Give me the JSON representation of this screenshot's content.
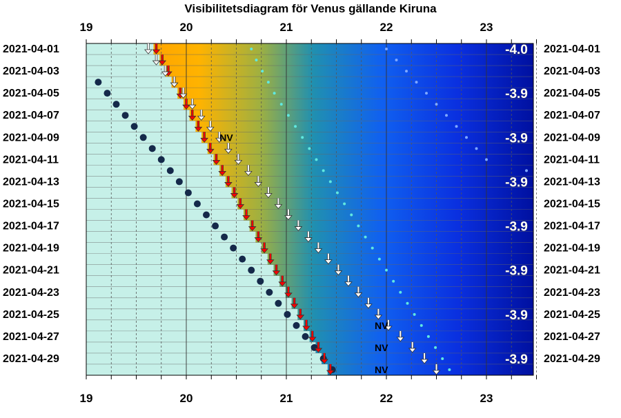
{
  "chart_data": {
    "type": "scatter",
    "title": "Visibilitetsdiagram för Venus gällande Kiruna",
    "x_ticks": [
      "19",
      "20",
      "21",
      "22",
      "23"
    ],
    "xlim": [
      19,
      23.5
    ],
    "date_labels": [
      "2021-04-01",
      "2021-04-03",
      "2021-04-05",
      "2021-04-07",
      "2021-04-09",
      "2021-04-11",
      "2021-04-13",
      "2021-04-15",
      "2021-04-17",
      "2021-04-19",
      "2021-04-21",
      "2021-04-23",
      "2021-04-25",
      "2021-04-27",
      "2021-04-29"
    ],
    "grid": true,
    "colors": {
      "light_sky": "#c6f0e8",
      "twilight": "#ffa500",
      "night": "#1020d0",
      "dot": "#15294a",
      "set_arrow": "#ff0000"
    },
    "series": [
      {
        "kind": "dark_dots",
        "dates": [
          "2021-04-04",
          "2021-04-05",
          "2021-04-06",
          "2021-04-07",
          "2021-04-08",
          "2021-04-09",
          "2021-04-10",
          "2021-04-11",
          "2021-04-12",
          "2021-04-13",
          "2021-04-14",
          "2021-04-15",
          "2021-04-16",
          "2021-04-17",
          "2021-04-18",
          "2021-04-19",
          "2021-04-20",
          "2021-04-21",
          "2021-04-22",
          "2021-04-23",
          "2021-04-24",
          "2021-04-25",
          "2021-04-26",
          "2021-04-27",
          "2021-04-28",
          "2021-04-29",
          "2021-04-30"
        ],
        "x": [
          19.12,
          19.21,
          19.3,
          19.39,
          19.48,
          19.57,
          19.66,
          19.75,
          19.84,
          19.93,
          20.02,
          20.11,
          20.2,
          20.29,
          20.38,
          20.47,
          20.56,
          20.65,
          20.74,
          20.83,
          20.92,
          21.01,
          21.1,
          21.19,
          21.28,
          21.37,
          21.46
        ]
      },
      {
        "kind": "red_arrows",
        "dates": [
          "2021-04-01",
          "2021-04-02",
          "2021-04-03",
          "2021-04-04",
          "2021-04-05",
          "2021-04-06",
          "2021-04-07",
          "2021-04-08",
          "2021-04-09",
          "2021-04-10",
          "2021-04-11",
          "2021-04-12",
          "2021-04-13",
          "2021-04-14",
          "2021-04-15",
          "2021-04-16",
          "2021-04-17",
          "2021-04-18",
          "2021-04-19",
          "2021-04-20",
          "2021-04-21",
          "2021-04-22",
          "2021-04-23",
          "2021-04-24",
          "2021-04-25",
          "2021-04-26",
          "2021-04-27",
          "2021-04-28",
          "2021-04-29",
          "2021-04-30"
        ],
        "x": [
          19.7,
          19.76,
          19.82,
          19.88,
          19.94,
          20.0,
          20.06,
          20.12,
          20.18,
          20.24,
          20.3,
          20.36,
          20.42,
          20.48,
          20.54,
          20.6,
          20.66,
          20.72,
          20.78,
          20.84,
          20.9,
          20.96,
          21.02,
          21.08,
          21.14,
          21.2,
          21.26,
          21.32,
          21.38,
          21.44
        ]
      },
      {
        "kind": "white_arrows",
        "dates": [
          "2021-04-01",
          "2021-04-02",
          "2021-04-03",
          "2021-04-04",
          "2021-04-05",
          "2021-04-06",
          "2021-04-07",
          "2021-04-08",
          "2021-04-09",
          "2021-04-10",
          "2021-04-11",
          "2021-04-12",
          "2021-04-13",
          "2021-04-14",
          "2021-04-15",
          "2021-04-16",
          "2021-04-17",
          "2021-04-18",
          "2021-04-19",
          "2021-04-20",
          "2021-04-21",
          "2021-04-22",
          "2021-04-23",
          "2021-04-24",
          "2021-04-25",
          "2021-04-26",
          "2021-04-27",
          "2021-04-28",
          "2021-04-29",
          "2021-04-30"
        ],
        "x": [
          19.62,
          19.7,
          19.79,
          19.88,
          19.97,
          20.06,
          20.15,
          20.24,
          20.33,
          20.42,
          20.52,
          20.62,
          20.72,
          20.82,
          20.92,
          21.02,
          21.12,
          21.22,
          21.32,
          21.42,
          21.52,
          21.62,
          21.72,
          21.82,
          21.92,
          22.02,
          22.14,
          22.26,
          22.38,
          22.5
        ]
      },
      {
        "kind": "cyan_dots",
        "dates": [
          "2021-04-01",
          "2021-04-02",
          "2021-04-03",
          "2021-04-04",
          "2021-04-05",
          "2021-04-06",
          "2021-04-07",
          "2021-04-08",
          "2021-04-09",
          "2021-04-10",
          "2021-04-11",
          "2021-04-12",
          "2021-04-13",
          "2021-04-14",
          "2021-04-15",
          "2021-04-16",
          "2021-04-17",
          "2021-04-18",
          "2021-04-19",
          "2021-04-20",
          "2021-04-21",
          "2021-04-22",
          "2021-04-23",
          "2021-04-24",
          "2021-04-25",
          "2021-04-26",
          "2021-04-27",
          "2021-04-28",
          "2021-04-29",
          "2021-04-30"
        ],
        "x": [
          20.65,
          20.7,
          20.76,
          20.82,
          20.88,
          20.95,
          21.02,
          21.09,
          21.16,
          21.23,
          21.3,
          21.37,
          21.44,
          21.51,
          21.58,
          21.65,
          21.72,
          21.79,
          21.86,
          21.93,
          22.0,
          22.07,
          22.14,
          22.21,
          22.28,
          22.35,
          22.42,
          22.49,
          22.56,
          22.63
        ]
      },
      {
        "kind": "blue_dots",
        "dates": [
          "2021-04-01",
          "2021-04-02",
          "2021-04-03",
          "2021-04-04",
          "2021-04-05",
          "2021-04-06",
          "2021-04-07",
          "2021-04-08",
          "2021-04-09",
          "2021-04-10",
          "2021-04-11",
          "2021-04-12"
        ],
        "x": [
          22.0,
          22.1,
          22.2,
          22.3,
          22.4,
          22.5,
          22.6,
          22.7,
          22.8,
          22.9,
          23.0,
          23.4
        ]
      }
    ],
    "annotations": [
      {
        "text": "-4.0",
        "date": "2021-04-01",
        "x": 23.3
      },
      {
        "text": "-3.9",
        "date": "2021-04-05",
        "x": 23.3
      },
      {
        "text": "-3.9",
        "date": "2021-04-09",
        "x": 23.3
      },
      {
        "text": "-3.9",
        "date": "2021-04-13",
        "x": 23.3
      },
      {
        "text": "-3.9",
        "date": "2021-04-17",
        "x": 23.3
      },
      {
        "text": "-3.9",
        "date": "2021-04-21",
        "x": 23.3
      },
      {
        "text": "-3.9",
        "date": "2021-04-25",
        "x": 23.3
      },
      {
        "text": "-3.9",
        "date": "2021-04-29",
        "x": 23.3
      },
      {
        "text": "NV",
        "date": "2021-04-09",
        "x": 20.4
      },
      {
        "text": "NV",
        "date": "2021-04-26",
        "x": 21.95
      },
      {
        "text": "NV",
        "date": "2021-04-28",
        "x": 21.95
      },
      {
        "text": "NV",
        "date": "2021-04-30",
        "x": 21.95
      }
    ]
  }
}
